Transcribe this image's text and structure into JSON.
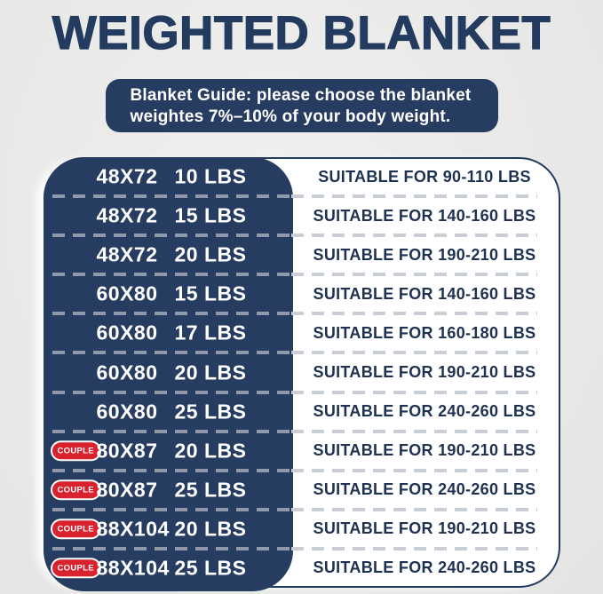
{
  "title": "WEIGHTED BLANKET",
  "banner": {
    "line1": "Blanket Guide: please choose the blanket",
    "line2": "weightes 7%–10% of your body weight."
  },
  "table": {
    "rows": [
      {
        "badge": "",
        "size": "48X72",
        "weight": "10 LBS",
        "suitable": "SUITABLE FOR 90-110 LBS"
      },
      {
        "badge": "",
        "size": "48X72",
        "weight": "15 LBS",
        "suitable": "SUITABLE FOR 140-160 LBS"
      },
      {
        "badge": "",
        "size": "48X72",
        "weight": "20 LBS",
        "suitable": "SUITABLE FOR 190-210 LBS"
      },
      {
        "badge": "",
        "size": "60X80",
        "weight": "15 LBS",
        "suitable": "SUITABLE FOR 140-160 LBS"
      },
      {
        "badge": "",
        "size": "60X80",
        "weight": "17 LBS",
        "suitable": "SUITABLE FOR 160-180 LBS"
      },
      {
        "badge": "",
        "size": "60X80",
        "weight": "20 LBS",
        "suitable": "SUITABLE FOR 190-210 LBS"
      },
      {
        "badge": "",
        "size": "60X80",
        "weight": "25 LBS",
        "suitable": "SUITABLE FOR 240-260 LBS"
      },
      {
        "badge": "COUPLE",
        "size": "80X87",
        "weight": "20 LBS",
        "suitable": "SUITABLE FOR 190-210 LBS"
      },
      {
        "badge": "COUPLE",
        "size": "80X87",
        "weight": "25 LBS",
        "suitable": "SUITABLE FOR 240-260 LBS"
      },
      {
        "badge": "COUPLE",
        "size": "88X104",
        "weight": "20 LBS",
        "suitable": "SUITABLE FOR 190-210 LBS"
      },
      {
        "badge": "COUPLE",
        "size": "88X104",
        "weight": "25 LBS",
        "suitable": "SUITABLE FOR 240-260 LBS"
      }
    ]
  },
  "colors": {
    "navy": "#263c60",
    "title_navy": "#243b60",
    "badge_red": "#d8232f",
    "background_gray": "#e9e9e8",
    "dash_on_navy": "#9099ab",
    "dash_on_white": "#c9cdd5",
    "right_text_navy": "#1e3150"
  },
  "chart_data": {
    "type": "table",
    "title": "WEIGHTED BLANKET",
    "subtitle": "Blanket Guide: please choose the blanket weightes 7%–10% of your body weight.",
    "rows": [
      {
        "couple": false,
        "size_in": "48X72",
        "blanket_weight_lbs": 10,
        "suitable_body_weight_lbs": "90-110"
      },
      {
        "couple": false,
        "size_in": "48X72",
        "blanket_weight_lbs": 15,
        "suitable_body_weight_lbs": "140-160"
      },
      {
        "couple": false,
        "size_in": "48X72",
        "blanket_weight_lbs": 20,
        "suitable_body_weight_lbs": "190-210"
      },
      {
        "couple": false,
        "size_in": "60X80",
        "blanket_weight_lbs": 15,
        "suitable_body_weight_lbs": "140-160"
      },
      {
        "couple": false,
        "size_in": "60X80",
        "blanket_weight_lbs": 17,
        "suitable_body_weight_lbs": "160-180"
      },
      {
        "couple": false,
        "size_in": "60X80",
        "blanket_weight_lbs": 20,
        "suitable_body_weight_lbs": "190-210"
      },
      {
        "couple": false,
        "size_in": "60X80",
        "blanket_weight_lbs": 25,
        "suitable_body_weight_lbs": "240-260"
      },
      {
        "couple": true,
        "size_in": "80X87",
        "blanket_weight_lbs": 20,
        "suitable_body_weight_lbs": "190-210"
      },
      {
        "couple": true,
        "size_in": "80X87",
        "blanket_weight_lbs": 25,
        "suitable_body_weight_lbs": "240-260"
      },
      {
        "couple": true,
        "size_in": "88X104",
        "blanket_weight_lbs": 20,
        "suitable_body_weight_lbs": "190-210"
      },
      {
        "couple": true,
        "size_in": "88X104",
        "blanket_weight_lbs": 25,
        "suitable_body_weight_lbs": "240-260"
      }
    ]
  }
}
